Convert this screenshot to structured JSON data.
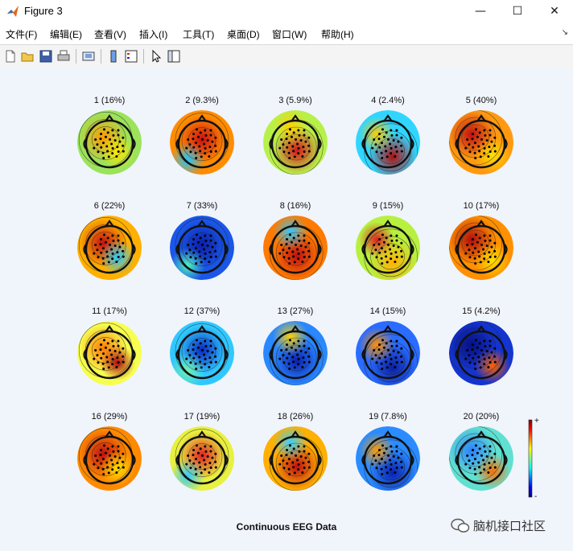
{
  "window": {
    "title": "Figure 3",
    "minimize_glyph": "—",
    "maximize_glyph": "☐",
    "close_glyph": "✕",
    "app_icon": "matlab-logo-icon"
  },
  "menubar": {
    "items": [
      {
        "label": "文件(F)"
      },
      {
        "label": "编辑(E)"
      },
      {
        "label": "查看(V)"
      },
      {
        "label": "插入(I)"
      },
      {
        "label": "工具(T)"
      },
      {
        "label": "桌面(D)"
      },
      {
        "label": "窗口(W)"
      },
      {
        "label": "帮助(H)"
      }
    ],
    "dock_arrow": "↘"
  },
  "toolbar": {
    "icons": [
      "new-figure-icon",
      "open-file-icon",
      "save-icon",
      "print-icon",
      "print-preview-icon",
      "colorbar-icon",
      "legend-icon",
      "pointer-icon",
      "property-inspector-icon"
    ]
  },
  "figure": {
    "title": "Continuous EEG Data",
    "colorbar": {
      "max_label": "+",
      "min_label": "-"
    },
    "components": [
      {
        "label": "1 (16%)",
        "bg": "#9be35a",
        "blobs": [
          {
            "c": "#ff9900"
          },
          {
            "c": "#ffe600"
          }
        ]
      },
      {
        "label": "2 (9.3%)",
        "bg": "#ff8c00",
        "blobs": [
          {
            "c": "#cc1010"
          },
          {
            "c": "#22c3ff"
          }
        ]
      },
      {
        "label": "3 (5.9%)",
        "bg": "#b8f04a",
        "blobs": [
          {
            "c": "#d41818"
          },
          {
            "c": "#ffd000"
          }
        ]
      },
      {
        "label": "4 (2.4%)",
        "bg": "#30d6ff",
        "blobs": [
          {
            "c": "#b01010"
          },
          {
            "c": "#ffcc00"
          }
        ]
      },
      {
        "label": "5 (40%)",
        "bg": "#ff9a10",
        "blobs": [
          {
            "c": "#c01010"
          },
          {
            "c": "#ffe000"
          }
        ]
      },
      {
        "label": "6 (22%)",
        "bg": "#ffb000",
        "blobs": [
          {
            "c": "#c41010"
          },
          {
            "c": "#28c8ff"
          }
        ]
      },
      {
        "label": "7 (33%)",
        "bg": "#1a56e8",
        "blobs": [
          {
            "c": "#0a1ea8"
          },
          {
            "c": "#50f0c0"
          }
        ]
      },
      {
        "label": "8 (16%)",
        "bg": "#ff7a00",
        "blobs": [
          {
            "c": "#c01010"
          },
          {
            "c": "#30c8ff"
          }
        ]
      },
      {
        "label": "9 (15%)",
        "bg": "#b8f040",
        "blobs": [
          {
            "c": "#ffb000"
          },
          {
            "c": "#e02020"
          }
        ]
      },
      {
        "label": "10 (17%)",
        "bg": "#ff9000",
        "blobs": [
          {
            "c": "#b00c0c"
          },
          {
            "c": "#ffe000"
          }
        ]
      },
      {
        "label": "11 (17%)",
        "bg": "#f6ff50",
        "blobs": [
          {
            "c": "#ff7a00"
          },
          {
            "c": "#b00c0c"
          }
        ]
      },
      {
        "label": "12 (37%)",
        "bg": "#30c8ff",
        "blobs": [
          {
            "c": "#0a28c0"
          },
          {
            "c": "#70f0b0"
          }
        ]
      },
      {
        "label": "13 (27%)",
        "bg": "#2a88ff",
        "blobs": [
          {
            "c": "#0a20b0"
          },
          {
            "c": "#ffd000"
          }
        ]
      },
      {
        "label": "14 (15%)",
        "bg": "#2a6cff",
        "blobs": [
          {
            "c": "#0a1ea0"
          },
          {
            "c": "#ff9000"
          }
        ]
      },
      {
        "label": "15 (4.2%)",
        "bg": "#1434d0",
        "blobs": [
          {
            "c": "#061080"
          },
          {
            "c": "#ff6000"
          }
        ]
      },
      {
        "label": "16 (29%)",
        "bg": "#ff8a00",
        "blobs": [
          {
            "c": "#c01010"
          },
          {
            "c": "#ffe000"
          }
        ]
      },
      {
        "label": "17 (19%)",
        "bg": "#e8f040",
        "blobs": [
          {
            "c": "#e02020"
          },
          {
            "c": "#30c8ff"
          }
        ]
      },
      {
        "label": "18 (26%)",
        "bg": "#ffb000",
        "blobs": [
          {
            "c": "#c01010"
          },
          {
            "c": "#38d0ff"
          }
        ]
      },
      {
        "label": "19 (7.8%)",
        "bg": "#2a8cff",
        "blobs": [
          {
            "c": "#0a20b0"
          },
          {
            "c": "#ff9a00"
          }
        ]
      },
      {
        "label": "20 (20%)",
        "bg": "#60e0d0",
        "blobs": [
          {
            "c": "#2a80ff"
          },
          {
            "c": "#ff7000"
          }
        ]
      }
    ]
  },
  "watermark": {
    "text": "脑机接口社区",
    "icon": "wechat-icon"
  }
}
